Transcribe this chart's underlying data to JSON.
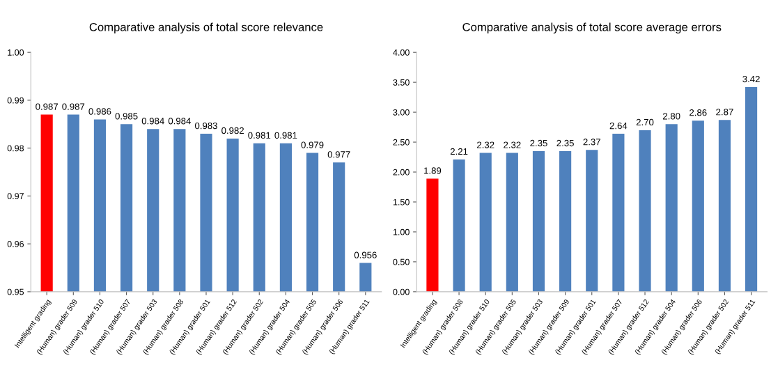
{
  "chart_data": [
    {
      "type": "bar",
      "title": "Comparative analysis of total score relevance",
      "categories": [
        "Intelligent grading",
        "(Human) grader 509",
        "(Human) grader 510",
        "(Human) grader 507",
        "(Human) grader 503",
        "(Human) grader 508",
        "(Human) grader 501",
        "(Human) grader 512",
        "(Human) grader 502",
        "(Human) grader 504",
        "(Human) grader 505",
        "(Human) grader 506",
        "(Human) grader 511"
      ],
      "values": [
        0.987,
        0.987,
        0.986,
        0.985,
        0.984,
        0.984,
        0.983,
        0.982,
        0.981,
        0.981,
        0.979,
        0.977,
        0.956
      ],
      "colors": [
        "#ff0000",
        "#4f81bd",
        "#4f81bd",
        "#4f81bd",
        "#4f81bd",
        "#4f81bd",
        "#4f81bd",
        "#4f81bd",
        "#4f81bd",
        "#4f81bd",
        "#4f81bd",
        "#4f81bd",
        "#4f81bd"
      ],
      "data_labels": true,
      "ylim": [
        0.95,
        1.0
      ],
      "yticks": [
        {
          "value": 0.95,
          "label": "0.95"
        },
        {
          "value": 0.96,
          "label": "0.96"
        },
        {
          "value": 0.97,
          "label": "0.97"
        },
        {
          "value": 0.98,
          "label": "0.98"
        },
        {
          "value": 0.99,
          "label": "0.99"
        },
        {
          "value": 1.0,
          "label": "1.00"
        }
      ],
      "grid": false
    },
    {
      "type": "bar",
      "title": "Comparative analysis of total score average errors",
      "categories": [
        "Intelligent grading",
        "(Human) grader 508",
        "(Human) grader 510",
        "(Human) grader 505",
        "(Human) grader 503",
        "(Human) grader 509",
        "(Human) grader 501",
        "(Human) grader 507",
        "(Human) grader 512",
        "(Human) grader 504",
        "(Human) grader 506",
        "(Human) grader 502",
        "(Human) grader 511"
      ],
      "values": [
        1.89,
        2.21,
        2.32,
        2.32,
        2.35,
        2.35,
        2.37,
        2.64,
        2.7,
        2.8,
        2.86,
        2.87,
        3.42
      ],
      "value_labels": [
        "1.89",
        "2.21",
        "2.32",
        "2.32",
        "2.35",
        "2.35",
        "2.37",
        "2.64",
        "2.70",
        "2.80",
        "2.86",
        "2.87",
        "3.42"
      ],
      "colors": [
        "#ff0000",
        "#4f81bd",
        "#4f81bd",
        "#4f81bd",
        "#4f81bd",
        "#4f81bd",
        "#4f81bd",
        "#4f81bd",
        "#4f81bd",
        "#4f81bd",
        "#4f81bd",
        "#4f81bd",
        "#4f81bd"
      ],
      "ylim": [
        0,
        4
      ],
      "yticks": [
        {
          "value": 0,
          "label": "0.00"
        },
        {
          "value": 0.5,
          "label": "0.50"
        },
        {
          "value": 1,
          "label": "1.00"
        },
        {
          "value": 1.5,
          "label": "1.50"
        },
        {
          "value": 2,
          "label": "2.00"
        },
        {
          "value": 2.5,
          "label": "2.50"
        },
        {
          "value": 3,
          "label": "3.00"
        },
        {
          "value": 3.5,
          "label": "3.50"
        },
        {
          "value": 4,
          "label": "4.00"
        }
      ],
      "grid": false
    }
  ]
}
